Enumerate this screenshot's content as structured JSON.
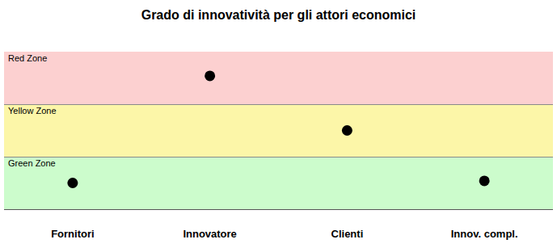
{
  "chart_data": {
    "type": "scatter",
    "title": "Grado di innovatività per gli attori economici",
    "categories": [
      "Fornitori",
      "Innovatore",
      "Clienti",
      "Innov. compl."
    ],
    "values": [
      0.5,
      2.54,
      1.5,
      0.54
    ],
    "color": "#000000",
    "marker": "circle",
    "ylim": [
      0,
      3
    ],
    "yticks": [
      0,
      1,
      2,
      3
    ],
    "grid": true,
    "tick_labels": "x",
    "zones": [
      {
        "label": "Red Zone",
        "from": 2,
        "to": 3,
        "color": "#fcd0d0"
      },
      {
        "label": "Yellow Zone",
        "from": 1,
        "to": 2,
        "color": "#fcf6a8"
      },
      {
        "label": "Green Zone",
        "from": 0,
        "to": 1,
        "color": "#ccfccc"
      }
    ]
  }
}
